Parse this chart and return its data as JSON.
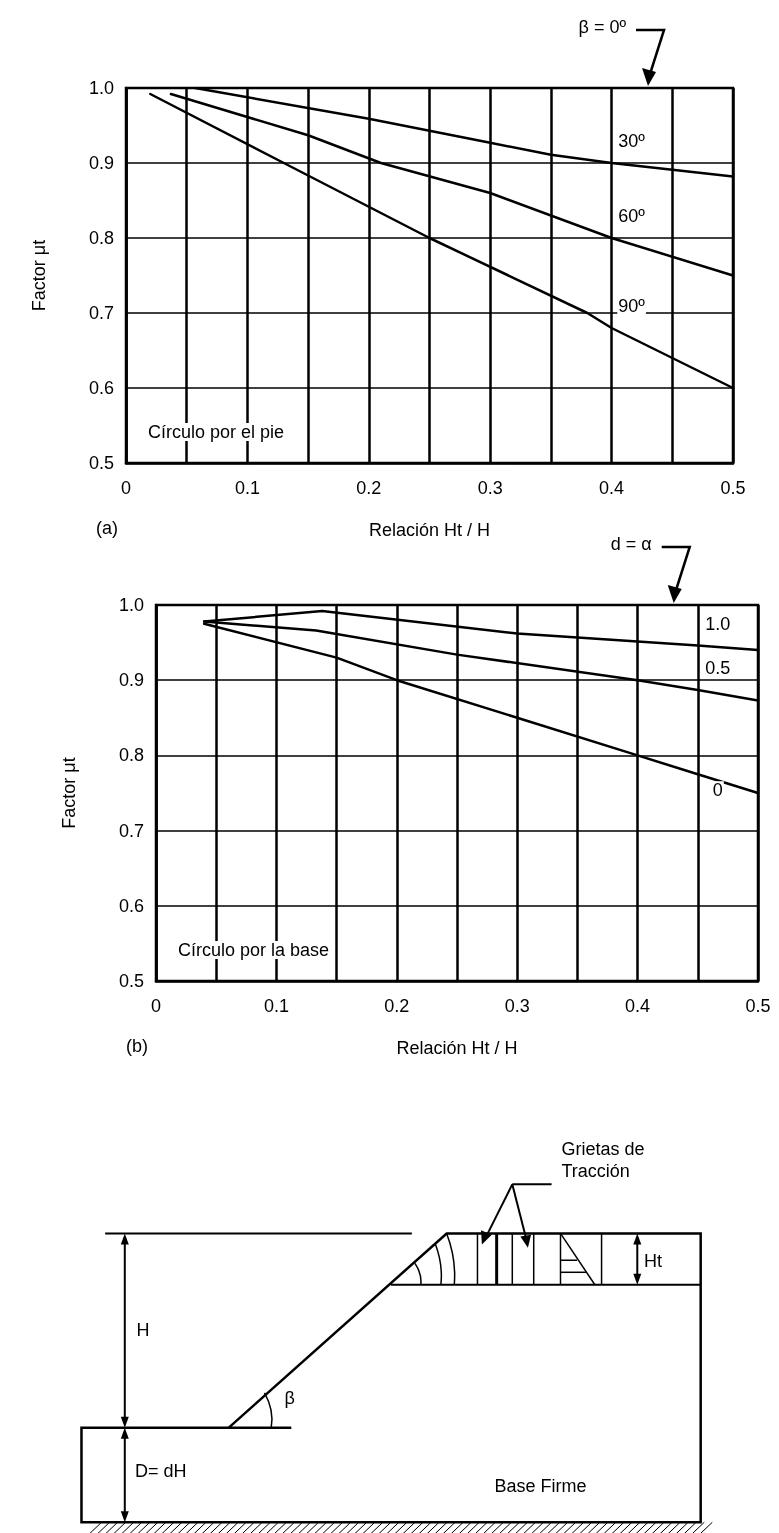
{
  "chart_data": [
    {
      "type": "line",
      "xlabel": "Relación Ht / H",
      "ylabel": "Factor μt",
      "xlim": [
        0,
        0.5
      ],
      "ylim": [
        0.5,
        1.0
      ],
      "xticks": [
        0,
        {
          "value": 0.05,
          "label": null
        },
        0.1,
        {
          "value": 0.15,
          "label": null
        },
        0.2,
        {
          "value": 0.25,
          "label": null
        },
        0.3,
        {
          "value": 0.35,
          "label": null
        },
        0.4,
        {
          "value": 0.45,
          "label": null
        },
        0.5
      ],
      "yticks": [
        0.5,
        0.6,
        0.7,
        0.8,
        0.9,
        {
          "value": 1.0,
          "label": "1.0"
        }
      ],
      "grid": true,
      "marker": "none",
      "line_style": "solid",
      "series": [
        {
          "name": "30º",
          "color": "#000000",
          "x": [
            0.057,
            0.2,
            0.3,
            0.35,
            0.4,
            0.5
          ],
          "values": [
            1.0,
            0.959,
            0.927,
            0.911,
            0.9,
            0.882
          ]
        },
        {
          "name": "60º",
          "color": "#000000",
          "x": [
            0.037,
            0.15,
            0.21,
            0.3,
            0.4,
            0.5
          ],
          "values": [
            0.992,
            0.937,
            0.9,
            0.86,
            0.8,
            0.75
          ]
        },
        {
          "name": "90º",
          "color": "#000000",
          "x": [
            0.02,
            0.13,
            0.25,
            0.38,
            0.4,
            0.5
          ],
          "values": [
            0.992,
            0.9,
            0.8,
            0.7,
            0.68,
            0.6
          ]
        }
      ],
      "annotations": [
        "β = 0º",
        "Círculo por el pie",
        "(a)"
      ]
    },
    {
      "type": "line",
      "xlabel": "Relación Ht / H",
      "ylabel": "Factor μt",
      "xlim": [
        0,
        0.5
      ],
      "ylim": [
        0.5,
        1.0
      ],
      "xticks": [
        0,
        {
          "value": 0.05,
          "label": null
        },
        0.1,
        {
          "value": 0.15,
          "label": null
        },
        0.2,
        {
          "value": 0.25,
          "label": null
        },
        0.3,
        {
          "value": 0.35,
          "label": null
        },
        0.4,
        {
          "value": 0.45,
          "label": null
        },
        0.5
      ],
      "yticks": [
        0.5,
        0.6,
        0.7,
        0.8,
        0.9,
        {
          "value": 1.0,
          "label": "1.0"
        }
      ],
      "grid": true,
      "marker": "none",
      "line_style": "solid",
      "series": [
        {
          "name": "1.0",
          "color": "#000000",
          "x": [
            0.04,
            0.138,
            0.3,
            0.45,
            0.5
          ],
          "values": [
            0.978,
            0.992,
            0.962,
            0.946,
            0.94
          ]
        },
        {
          "name": "0.5",
          "color": "#000000",
          "x": [
            0.04,
            0.133,
            0.25,
            0.4,
            0.45,
            0.5
          ],
          "values": [
            0.978,
            0.966,
            0.934,
            0.9,
            0.887,
            0.873
          ]
        },
        {
          "name": "0",
          "color": "#000000",
          "x": [
            0.04,
            0.15,
            0.2,
            0.3,
            0.4,
            0.45,
            0.5
          ],
          "values": [
            0.975,
            0.93,
            0.9,
            0.85,
            0.8,
            0.775,
            0.75
          ]
        }
      ],
      "annotations": [
        "d = α",
        "Círculo por la base",
        "(b)"
      ]
    },
    {
      "type": "other",
      "annotations": [
        "Grietas de Tracción",
        "H",
        "Ht",
        "β",
        "D= dH",
        "Base Firme"
      ]
    }
  ]
}
